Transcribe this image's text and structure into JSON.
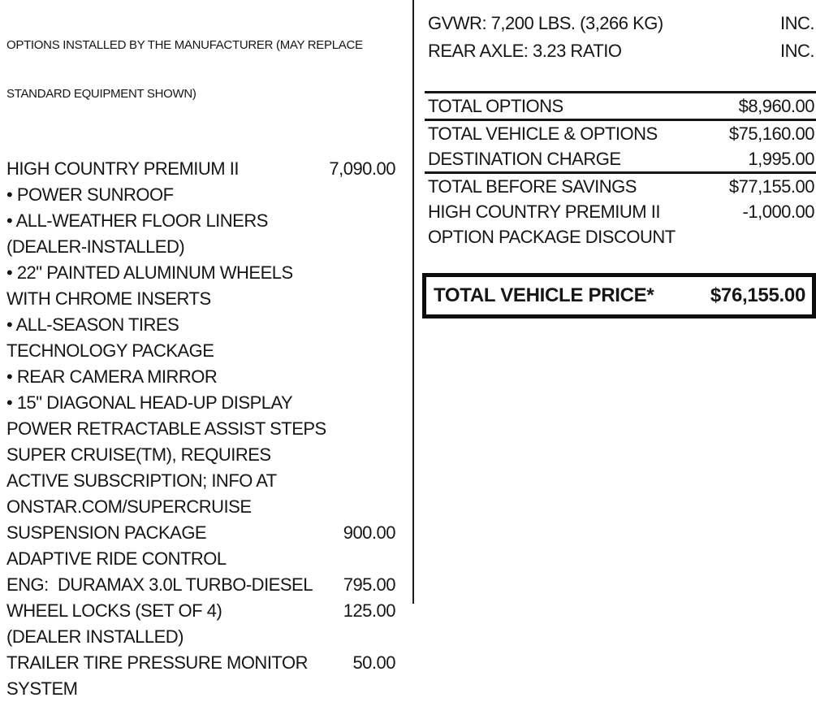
{
  "left": {
    "header_line1": "OPTIONS INSTALLED BY THE MANUFACTURER (MAY REPLACE",
    "header_line2": "STANDARD EQUIPMENT SHOWN)",
    "items": [
      {
        "label": "HIGH COUNTRY PREMIUM II",
        "price": "7,090.00"
      },
      {
        "label": "• POWER SUNROOF",
        "price": ""
      },
      {
        "label": "• ALL-WEATHER FLOOR LINERS",
        "price": ""
      },
      {
        "label": "(DEALER-INSTALLED)",
        "price": ""
      },
      {
        "label": "• 22\" PAINTED ALUMINUM WHEELS",
        "price": ""
      },
      {
        "label": "WITH CHROME INSERTS",
        "price": ""
      },
      {
        "label": "• ALL-SEASON TIRES",
        "price": ""
      },
      {
        "label": "TECHNOLOGY PACKAGE",
        "price": ""
      },
      {
        "label": "• REAR CAMERA MIRROR",
        "price": ""
      },
      {
        "label": "• 15\" DIAGONAL HEAD-UP DISPLAY",
        "price": ""
      },
      {
        "label": "POWER RETRACTABLE ASSIST STEPS",
        "price": ""
      },
      {
        "label": "SUPER CRUISE(TM), REQUIRES",
        "price": ""
      },
      {
        "label": "ACTIVE SUBSCRIPTION; INFO AT",
        "price": ""
      },
      {
        "label": "ONSTAR.COM/SUPERCRUISE",
        "price": ""
      },
      {
        "label": "SUSPENSION PACKAGE",
        "price": "900.00"
      },
      {
        "label": "ADAPTIVE RIDE CONTROL",
        "price": ""
      },
      {
        "label": "ENG:  DURAMAX 3.0L TURBO-DIESEL",
        "price": "795.00"
      },
      {
        "label": "WHEEL LOCKS (SET OF 4)",
        "price": "125.00"
      },
      {
        "label": "(DEALER INSTALLED)",
        "price": ""
      },
      {
        "label": "TRAILER TIRE PRESSURE MONITOR",
        "price": "50.00"
      },
      {
        "label": "SYSTEM",
        "price": ""
      }
    ]
  },
  "right": {
    "specs": [
      {
        "label": "GVWR: 7,200 LBS. (3,266 KG)",
        "value": "INC."
      },
      {
        "label": "REAR AXLE: 3.23 RATIO",
        "value": "INC."
      }
    ],
    "totals": [
      {
        "label": "TOTAL OPTIONS",
        "value": "$8,960.00"
      },
      {
        "label": "TOTAL VEHICLE & OPTIONS",
        "value": "$75,160.00"
      },
      {
        "label": "DESTINATION CHARGE",
        "value": "1,995.00"
      },
      {
        "label": "TOTAL BEFORE SAVINGS",
        "value": "$77,155.00"
      },
      {
        "label": "HIGH COUNTRY PREMIUM II",
        "value": "-1,000.00"
      },
      {
        "label": "OPTION PACKAGE DISCOUNT",
        "value": ""
      }
    ],
    "grand_total": {
      "label": "TOTAL VEHICLE PRICE*",
      "value": "$76,155.00"
    }
  },
  "colors": {
    "text": "#161616",
    "rule": "#151515",
    "background": "#ffffff"
  }
}
